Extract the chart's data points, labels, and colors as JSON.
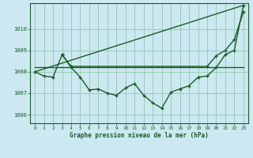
{
  "title": "Graphe pression niveau de la mer (hPa)",
  "bg_color": "#cce8f0",
  "grid_color": "#99ccbb",
  "line_color": "#1a5c2a",
  "xlim": [
    -0.5,
    23.5
  ],
  "ylim": [
    1005.6,
    1011.2
  ],
  "yticks": [
    1006,
    1007,
    1008,
    1009,
    1010
  ],
  "xticks": [
    0,
    1,
    2,
    3,
    4,
    5,
    6,
    7,
    8,
    9,
    10,
    11,
    12,
    13,
    14,
    15,
    16,
    17,
    18,
    19,
    20,
    21,
    22,
    23
  ],
  "line1_x": [
    0,
    23
  ],
  "line1_y": [
    1008.0,
    1011.1
  ],
  "line2_x": [
    3,
    4,
    19,
    20,
    21,
    22,
    23
  ],
  "line2_y": [
    1008.8,
    1008.25,
    1008.25,
    1008.75,
    1009.0,
    1009.5,
    1010.8
  ],
  "line3_x": [
    0,
    23
  ],
  "line3_y": [
    1008.2,
    1008.2
  ],
  "line4_x": [
    0,
    1,
    2,
    3,
    4,
    5,
    6,
    7,
    8,
    9,
    10,
    11,
    12,
    13,
    14,
    15,
    16,
    17,
    18,
    19,
    20,
    21,
    22,
    23
  ],
  "line4_y": [
    1008.0,
    1007.8,
    1007.75,
    1008.8,
    1008.2,
    1007.75,
    1007.15,
    1007.2,
    1007.0,
    1006.9,
    1007.25,
    1007.45,
    1006.9,
    1006.55,
    1006.3,
    1007.05,
    1007.2,
    1007.35,
    1007.75,
    1007.8,
    1008.2,
    1008.8,
    1009.0,
    1011.1
  ]
}
